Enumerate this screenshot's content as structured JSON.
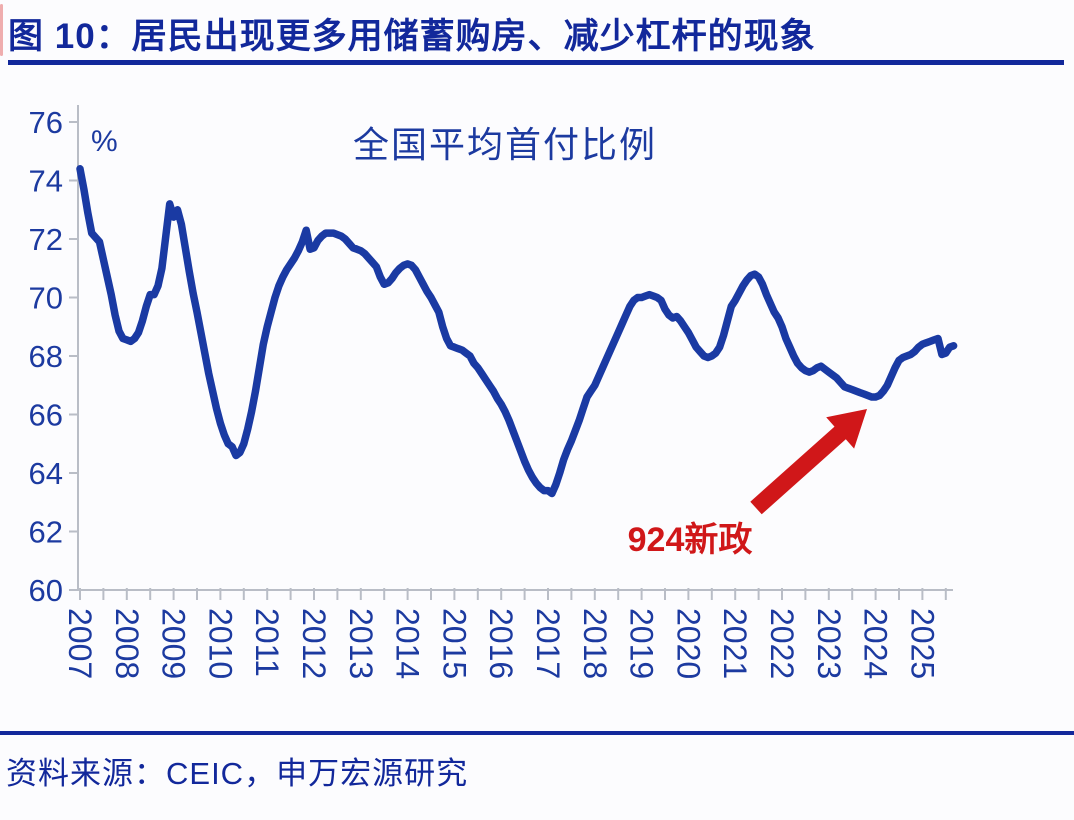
{
  "figure": {
    "title": "图 10：居民出现更多用储蓄购房、减少杠杆的现象",
    "source": "资料来源：CEIC，申万宏源研究"
  },
  "colors": {
    "navy_title": "#12289b",
    "navy_label": "#1c3aa0",
    "line": "#1a3aa3",
    "axis_gray": "#b9bdc6",
    "annotation_red": "#d01719",
    "background": "#fcfcfe"
  },
  "chart_data": {
    "type": "line",
    "title": "全国平均首付比例",
    "unit_label": "%",
    "legend": "none",
    "grid": false,
    "ylim": [
      60,
      76
    ],
    "y_ticks": [
      60,
      62,
      64,
      66,
      68,
      70,
      72,
      74,
      76
    ],
    "x_tick_years": [
      2007,
      2008,
      2009,
      2010,
      2011,
      2012,
      2013,
      2014,
      2015,
      2016,
      2017,
      2018,
      2019,
      2020,
      2021,
      2022,
      2023,
      2024,
      2025
    ],
    "x_start": "2007-01",
    "frequency": "monthly",
    "series": [
      {
        "name": "全国平均首付比例",
        "values": [
          74.4,
          73.7,
          72.9,
          72.2,
          72.05,
          71.9,
          71.3,
          70.7,
          70.1,
          69.4,
          68.85,
          68.6,
          68.55,
          68.5,
          68.6,
          68.8,
          69.2,
          69.7,
          70.1,
          70.1,
          70.4,
          71.0,
          72.1,
          73.2,
          72.75,
          73.0,
          72.5,
          71.7,
          70.9,
          70.15,
          69.5,
          68.8,
          68.1,
          67.4,
          66.8,
          66.2,
          65.7,
          65.3,
          65.0,
          64.9,
          64.6,
          64.7,
          65.0,
          65.5,
          66.1,
          66.8,
          67.6,
          68.4,
          69.0,
          69.5,
          70.0,
          70.4,
          70.7,
          70.95,
          71.15,
          71.35,
          71.6,
          71.9,
          72.3,
          71.65,
          71.7,
          71.95,
          72.1,
          72.2,
          72.2,
          72.2,
          72.15,
          72.1,
          72.0,
          71.85,
          71.7,
          71.65,
          71.6,
          71.5,
          71.35,
          71.2,
          71.05,
          70.7,
          70.45,
          70.5,
          70.65,
          70.85,
          71.0,
          71.1,
          71.15,
          71.1,
          70.95,
          70.7,
          70.45,
          70.2,
          70.0,
          69.75,
          69.5,
          69.0,
          68.6,
          68.35,
          68.3,
          68.25,
          68.2,
          68.1,
          68.0,
          67.75,
          67.6,
          67.4,
          67.2,
          67.0,
          66.8,
          66.55,
          66.35,
          66.1,
          65.8,
          65.45,
          65.1,
          64.75,
          64.4,
          64.1,
          63.85,
          63.65,
          63.5,
          63.4,
          63.4,
          63.3,
          63.6,
          64.0,
          64.45,
          64.8,
          65.1,
          65.45,
          65.8,
          66.2,
          66.6,
          66.8,
          67.0,
          67.3,
          67.6,
          67.9,
          68.2,
          68.5,
          68.8,
          69.1,
          69.4,
          69.7,
          69.9,
          70.0,
          70.0,
          70.05,
          70.1,
          70.05,
          70.0,
          69.9,
          69.6,
          69.4,
          69.3,
          69.35,
          69.2,
          69.0,
          68.8,
          68.55,
          68.3,
          68.15,
          68.0,
          67.95,
          68.0,
          68.1,
          68.3,
          68.7,
          69.2,
          69.7,
          69.9,
          70.15,
          70.4,
          70.6,
          70.75,
          70.8,
          70.7,
          70.45,
          70.1,
          69.8,
          69.5,
          69.3,
          69.0,
          68.6,
          68.3,
          68.0,
          67.75,
          67.6,
          67.5,
          67.45,
          67.5,
          67.6,
          67.65,
          67.55,
          67.45,
          67.35,
          67.25,
          67.1,
          66.95,
          66.9,
          66.85,
          66.8,
          66.75,
          66.7,
          66.65,
          66.6,
          66.6,
          66.65,
          66.8,
          67.0,
          67.3,
          67.6,
          67.85,
          67.95,
          68.0,
          68.05,
          68.15,
          68.3,
          68.4,
          68.45,
          68.5,
          68.55,
          68.6,
          68.05,
          68.1,
          68.3,
          68.35
        ]
      }
    ],
    "annotation": {
      "text": "924新政"
    }
  }
}
